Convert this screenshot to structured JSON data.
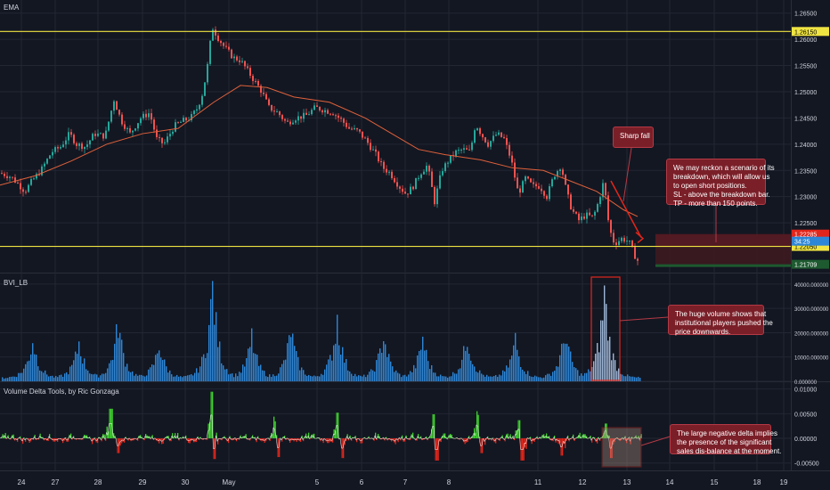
{
  "colors": {
    "background": "#131722",
    "grid": "#232733",
    "up": "#26a69a",
    "down": "#ef5350",
    "ema": "#e0613a",
    "level": "#f0e442",
    "volume": "#2e86d6",
    "volume_highlight": "#9db6d6",
    "delta_pos": "#3fd12e",
    "delta_neg": "#e2261b",
    "note": "#7a1f28"
  },
  "panes": {
    "price_title": "EMA",
    "volume_title": "BVI_LB",
    "delta_title": "Volume Delta Tools, by Ric Gonzaga"
  },
  "notes": {
    "sharp_fall": "Sharp fall",
    "scenario": [
      "We may reckon a scenario of its",
      "breakdown, which will allow us",
      "to open short positions.",
      "SL - above the breakdown bar.",
      "TP - more than 150 points."
    ],
    "volume": [
      "The huge volume shows that",
      "institutional players pushed the",
      "price downwards."
    ],
    "delta": [
      "The large negative delta implies",
      "the presence of the significant",
      "sales dis-balance at the moment."
    ]
  },
  "chart_data": [
    {
      "type": "candlestick",
      "title": "EMA",
      "x_ticks": [
        "24",
        "27",
        "28",
        "29",
        "30",
        "May",
        "5",
        "6",
        "7",
        "8",
        "11",
        "12",
        "13",
        "14",
        "15",
        "18",
        "19"
      ],
      "y_ticks": [
        "1.26500",
        "1.26000",
        "1.25500",
        "1.25000",
        "1.24500",
        "1.24000",
        "1.23500",
        "1.23000",
        "1.22500"
      ],
      "ylim": [
        1.2155,
        1.2675
      ],
      "levels": [
        {
          "label": "1.26150",
          "value": 1.2615
        },
        {
          "label": "1.22050",
          "value": 1.2205
        }
      ],
      "price_labels": [
        {
          "label": "1.22285",
          "value": 1.22285,
          "color": "#e2261b"
        },
        {
          "label": "34:25",
          "value": 1.2215,
          "color": "#2e86d6"
        },
        {
          "label": "1.21709",
          "value": 1.21709,
          "color": "#1e5a30"
        }
      ],
      "close_path": [
        [
          0,
          1.2345
        ],
        [
          12,
          1.2338
        ],
        [
          20,
          1.2325
        ],
        [
          28,
          1.231
        ],
        [
          36,
          1.233
        ],
        [
          46,
          1.235
        ],
        [
          58,
          1.2385
        ],
        [
          68,
          1.2395
        ],
        [
          78,
          1.242
        ],
        [
          86,
          1.24
        ],
        [
          96,
          1.2395
        ],
        [
          106,
          1.242
        ],
        [
          118,
          1.2415
        ],
        [
          128,
          1.2485
        ],
        [
          136,
          1.2445
        ],
        [
          146,
          1.242
        ],
        [
          158,
          1.245
        ],
        [
          168,
          1.246
        ],
        [
          176,
          1.241
        ],
        [
          184,
          1.24
        ],
        [
          196,
          1.2435
        ],
        [
          206,
          1.2445
        ],
        [
          214,
          1.245
        ],
        [
          222,
          1.247
        ],
        [
          228,
          1.25
        ],
        [
          234,
          1.256
        ],
        [
          238,
          1.2625
        ],
        [
          244,
          1.2605
        ],
        [
          252,
          1.2585
        ],
        [
          262,
          1.2565
        ],
        [
          270,
          1.256
        ],
        [
          278,
          1.254
        ],
        [
          286,
          1.252
        ],
        [
          294,
          1.25
        ],
        [
          302,
          1.247
        ],
        [
          312,
          1.246
        ],
        [
          322,
          1.244
        ],
        [
          332,
          1.245
        ],
        [
          344,
          1.2455
        ],
        [
          354,
          1.247
        ],
        [
          364,
          1.2465
        ],
        [
          374,
          1.246
        ],
        [
          384,
          1.2445
        ],
        [
          392,
          1.243
        ],
        [
          402,
          1.2425
        ],
        [
          412,
          1.2405
        ],
        [
          422,
          1.238
        ],
        [
          430,
          1.2355
        ],
        [
          438,
          1.2345
        ],
        [
          448,
          1.232
        ],
        [
          456,
          1.2305
        ],
        [
          464,
          1.232
        ],
        [
          472,
          1.2345
        ],
        [
          480,
          1.236
        ],
        [
          488,
          1.229
        ],
        [
          496,
          1.235
        ],
        [
          504,
          1.237
        ],
        [
          512,
          1.2385
        ],
        [
          520,
          1.239
        ],
        [
          528,
          1.2385
        ],
        [
          534,
          1.244
        ],
        [
          540,
          1.242
        ],
        [
          548,
          1.24
        ],
        [
          558,
          1.242
        ],
        [
          566,
          1.241
        ],
        [
          574,
          1.237
        ],
        [
          582,
          1.2305
        ],
        [
          590,
          1.2335
        ],
        [
          598,
          1.232
        ],
        [
          606,
          1.232
        ],
        [
          614,
          1.23
        ],
        [
          622,
          1.234
        ],
        [
          630,
          1.236
        ],
        [
          636,
          1.231
        ],
        [
          642,
          1.2275
        ],
        [
          650,
          1.2255
        ],
        [
          658,
          1.2265
        ],
        [
          666,
          1.226
        ],
        [
          672,
          1.229
        ],
        [
          678,
          1.233
        ],
        [
          684,
          1.224
        ],
        [
          690,
          1.221
        ],
        [
          698,
          1.222
        ],
        [
          706,
          1.2215
        ],
        [
          712,
          1.219
        ],
        [
          716,
          1.2178
        ]
      ],
      "ema_path": [
        [
          0,
          1.2322
        ],
        [
          40,
          1.234
        ],
        [
          80,
          1.2368
        ],
        [
          120,
          1.24
        ],
        [
          160,
          1.242
        ],
        [
          200,
          1.243
        ],
        [
          240,
          1.248
        ],
        [
          270,
          1.2512
        ],
        [
          300,
          1.2508
        ],
        [
          330,
          1.249
        ],
        [
          370,
          1.248
        ],
        [
          410,
          1.245
        ],
        [
          440,
          1.242
        ],
        [
          470,
          1.239
        ],
        [
          500,
          1.238
        ],
        [
          540,
          1.237
        ],
        [
          575,
          1.2355
        ],
        [
          610,
          1.235
        ],
        [
          640,
          1.233
        ],
        [
          670,
          1.231
        ],
        [
          700,
          1.2275
        ],
        [
          716,
          1.2262
        ]
      ]
    },
    {
      "type": "bar",
      "title": "BVI_LB",
      "y_ticks": [
        "40000.000000",
        "30000.000000",
        "20000.000000",
        "10000.000000",
        "0.000000"
      ],
      "ylim": [
        0,
        44000
      ],
      "highlight_range": [
        664,
        696
      ],
      "peaks": [
        [
          36,
          18000
        ],
        [
          88,
          17000
        ],
        [
          132,
          26000
        ],
        [
          178,
          16000
        ],
        [
          238,
          42000
        ],
        [
          282,
          19000
        ],
        [
          326,
          23000
        ],
        [
          378,
          28000
        ],
        [
          430,
          21000
        ],
        [
          474,
          19000
        ],
        [
          524,
          20000
        ],
        [
          578,
          18000
        ],
        [
          634,
          22000
        ],
        [
          678,
          40000
        ]
      ]
    },
    {
      "type": "bar",
      "title": "Volume Delta Tools, by Ric Gonzaga",
      "y_ticks": [
        "0.01000",
        "0.00500",
        "0.00000",
        "-0.00500"
      ],
      "ylim": [
        -0.0065,
        0.0112
      ],
      "highlight_range": [
        676,
        720
      ],
      "spikes": [
        [
          124,
          0.006
        ],
        [
          132,
          -0.003
        ],
        [
          238,
          0.0105
        ],
        [
          240,
          -0.0042
        ],
        [
          308,
          0.0044
        ],
        [
          312,
          -0.0038
        ],
        [
          378,
          0.0052
        ],
        [
          384,
          -0.004
        ],
        [
          486,
          0.006
        ],
        [
          490,
          -0.0045
        ],
        [
          536,
          0.0055
        ],
        [
          540,
          -0.003
        ],
        [
          582,
          0.0048
        ],
        [
          586,
          -0.0045
        ],
        [
          630,
          -0.0035
        ],
        [
          680,
          0.003
        ],
        [
          686,
          -0.004
        ]
      ]
    }
  ]
}
